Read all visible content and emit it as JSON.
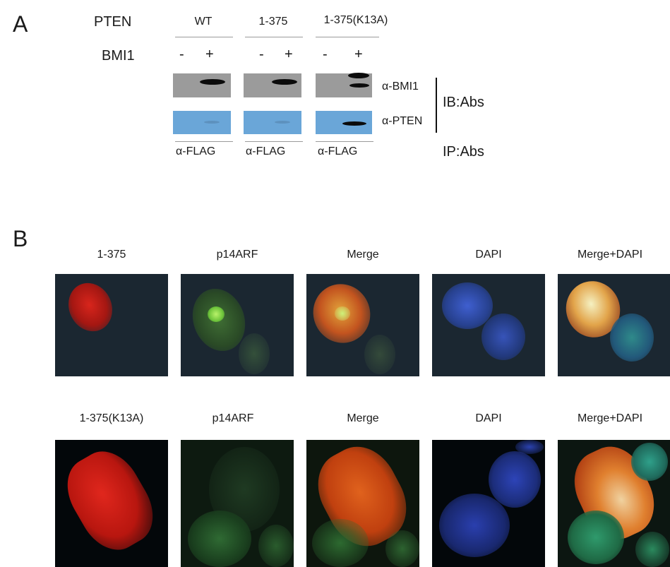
{
  "panel_a": {
    "letter": "A",
    "row_pten": "PTEN",
    "row_bmi1": "BMI1",
    "groups": [
      {
        "name": "WT",
        "minus": "-",
        "plus": "+",
        "ip": "α-FLAG"
      },
      {
        "name": "1-375",
        "minus": "-",
        "plus": "+",
        "ip": "α-FLAG"
      },
      {
        "name": "1-375(K13A)",
        "minus": "-",
        "plus": "+",
        "ip": "α-FLAG"
      }
    ],
    "blot_bmi1": "α-BMI1",
    "blot_pten": "α-PTEN",
    "ib_label": "IB:Abs",
    "ip_label": "IP:Abs"
  },
  "panel_b": {
    "letter": "B",
    "row1_labels": [
      "1-375",
      "p14ARF",
      "Merge",
      "DAPI",
      "Merge+DAPI"
    ],
    "row2_labels": [
      "1-375(K13A)",
      "p14ARF",
      "Merge",
      "DAPI",
      "Merge+DAPI"
    ]
  }
}
